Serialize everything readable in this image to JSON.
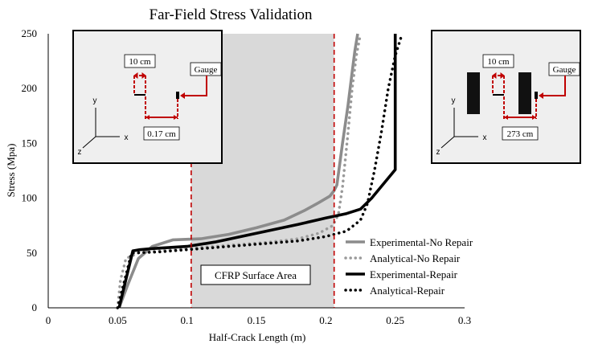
{
  "chart_data": {
    "type": "line",
    "title": "Far-Field Stress Validation",
    "xlabel": "Half-Crack Length (m)",
    "ylabel": "Stress (Mpa)",
    "xlim": [
      0,
      0.3
    ],
    "ylim": [
      0,
      250
    ],
    "x_ticks": [
      0,
      0.05,
      0.1,
      0.15,
      0.2,
      0.25,
      0.3
    ],
    "x_tick_labels": [
      "0",
      "0.05",
      "0.1",
      "0.15",
      "0.2",
      "0.25",
      "0.3"
    ],
    "y_ticks": [
      0,
      50,
      100,
      150,
      200,
      250
    ],
    "y_tick_labels": [
      "0",
      "50",
      "100",
      "150",
      "200",
      "250"
    ],
    "grid": false,
    "legend_position": "bottom-right",
    "series": [
      {
        "name": "Experimental-No Repair",
        "color": "#8c8c8c",
        "style": "solid",
        "x": [
          0.051,
          0.057,
          0.065,
          0.075,
          0.09,
          0.11,
          0.13,
          0.15,
          0.17,
          0.185,
          0.195,
          0.203,
          0.206,
          0.208,
          0.212,
          0.216,
          0.219,
          0.221,
          0.223
        ],
        "y": [
          0,
          20,
          45,
          56,
          62,
          63,
          67,
          73,
          80,
          89,
          96,
          102,
          107,
          112,
          150,
          185,
          215,
          235,
          250
        ]
      },
      {
        "name": "Analytical-No Repair",
        "color": "#9a9a9a",
        "style": "dotted",
        "x": [
          0.05,
          0.052,
          0.056,
          0.065,
          0.08,
          0.1,
          0.12,
          0.14,
          0.16,
          0.18,
          0.195,
          0.205,
          0.209,
          0.212,
          0.216,
          0.219,
          0.222,
          0.225
        ],
        "y": [
          0,
          25,
          45,
          50,
          52,
          54,
          56,
          58,
          60,
          63,
          68,
          75,
          85,
          110,
          160,
          200,
          230,
          250
        ]
      },
      {
        "name": "Experimental-Repair",
        "color": "#000000",
        "style": "solid",
        "x": [
          0.051,
          0.061,
          0.066,
          0.075,
          0.1,
          0.12,
          0.15,
          0.18,
          0.2,
          0.215,
          0.225,
          0.233,
          0.25,
          0.25,
          0.25
        ],
        "y": [
          0,
          52,
          53,
          54,
          56,
          60,
          68,
          76,
          82,
          86,
          90,
          100,
          126,
          200,
          250
        ]
      },
      {
        "name": "Analytical-Repair",
        "color": "#000000",
        "style": "dotted",
        "x": [
          0.05,
          0.06,
          0.08,
          0.1,
          0.12,
          0.15,
          0.18,
          0.2,
          0.215,
          0.225,
          0.23,
          0.235,
          0.24,
          0.245,
          0.25,
          0.255
        ],
        "y": [
          0,
          50,
          51,
          53,
          55,
          58,
          61,
          65,
          70,
          80,
          95,
          125,
          160,
          200,
          230,
          250
        ]
      }
    ],
    "reference_lines": [
      {
        "x": 0.103,
        "color": "#c00000",
        "style": "dashed"
      },
      {
        "x": 0.206,
        "color": "#c00000",
        "style": "dashed"
      }
    ],
    "shaded_region": {
      "x_range": [
        0.103,
        0.206
      ],
      "label": "CFRP Surface Area",
      "color": "#d9d9d9"
    },
    "insets": [
      {
        "name": "no-repair-inset",
        "position": "top-left",
        "labels": {
          "spacing": "10 cm",
          "gauge": "Gauge",
          "distance": "0.17 cm",
          "axis_x": "x",
          "axis_y": "y",
          "axis_z": "z"
        }
      },
      {
        "name": "repair-inset",
        "position": "top-right",
        "labels": {
          "spacing": "10 cm",
          "gauge": "Gauge",
          "distance": "273 cm",
          "axis_x": "x",
          "axis_y": "y",
          "axis_z": "z"
        }
      }
    ]
  }
}
